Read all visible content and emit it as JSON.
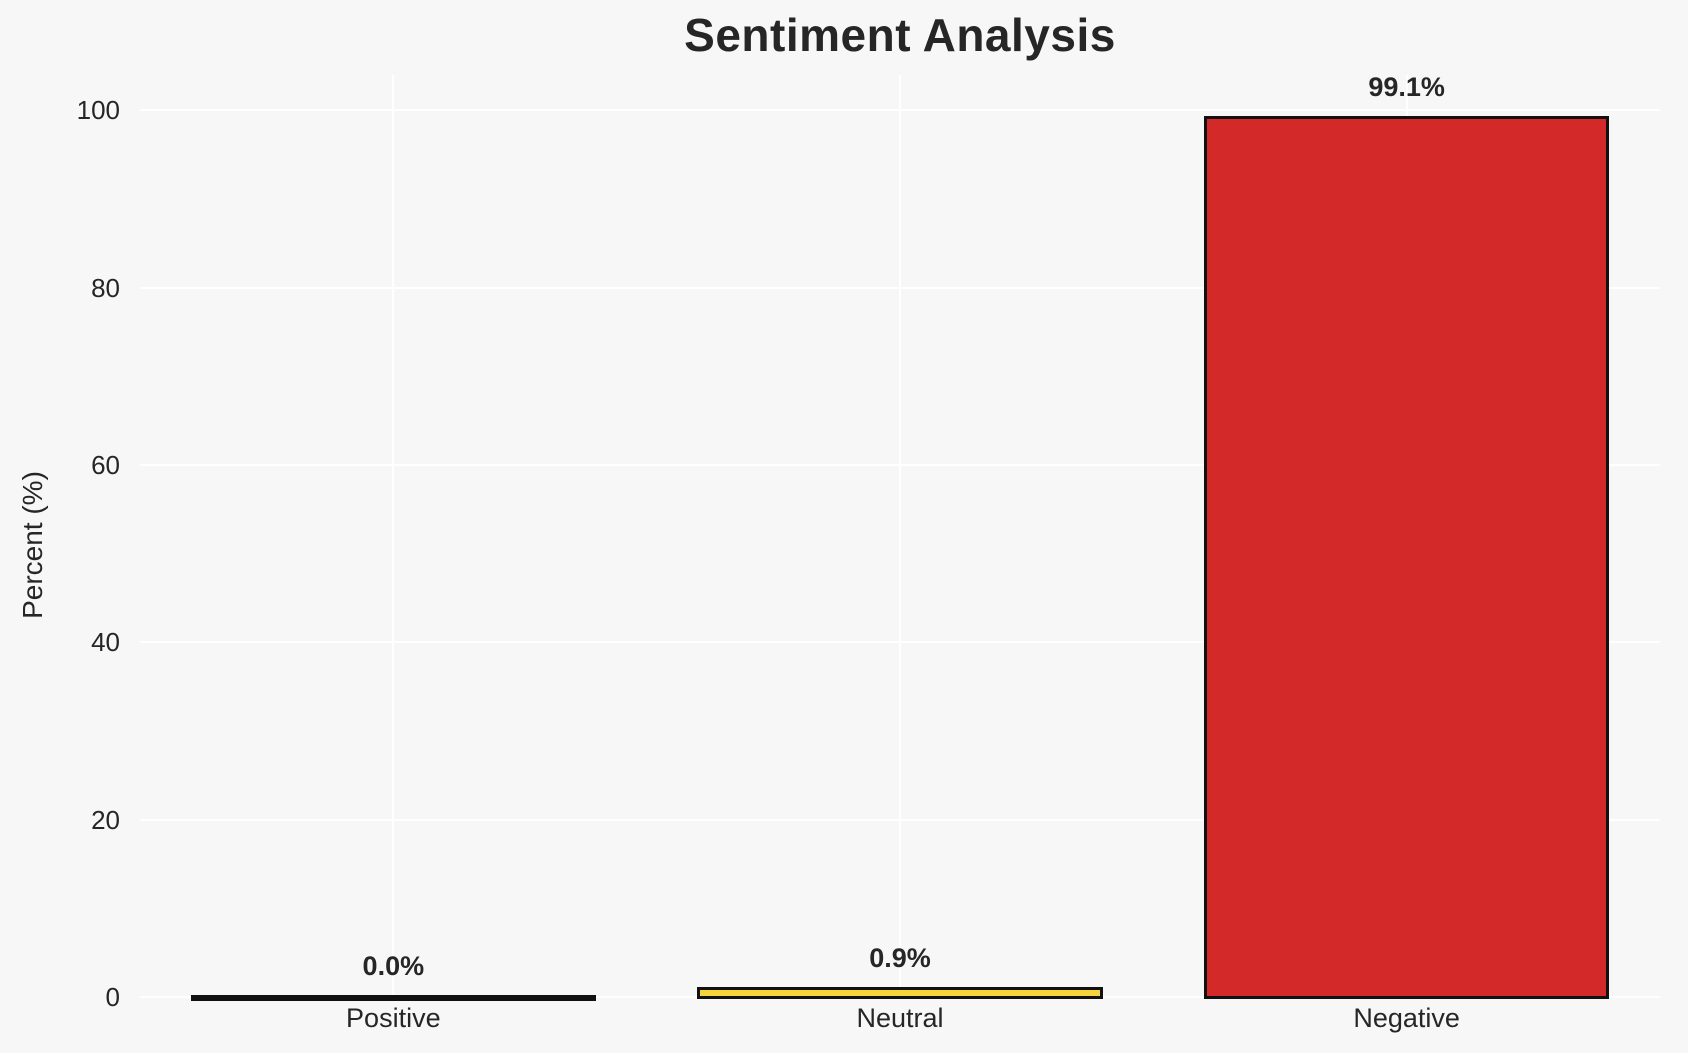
{
  "chart_data": {
    "type": "bar",
    "title": "Sentiment Analysis",
    "xlabel": "",
    "ylabel": "Percent (%)",
    "categories": [
      "Positive",
      "Neutral",
      "Negative"
    ],
    "values": [
      0.0,
      0.9,
      99.1
    ],
    "value_labels": [
      "0.0%",
      "0.9%",
      "99.1%"
    ],
    "bar_colors": [
      null,
      "#f5d33c",
      "#d32929"
    ],
    "bar_edge_color": "#111111",
    "yticks": [
      0,
      20,
      40,
      60,
      80,
      100
    ],
    "ylim": [
      0,
      104
    ],
    "grid": true,
    "grid_color": "#ffffff",
    "background_color": "#f7f7f7",
    "text_color": "#262626",
    "legend_position": "none"
  }
}
